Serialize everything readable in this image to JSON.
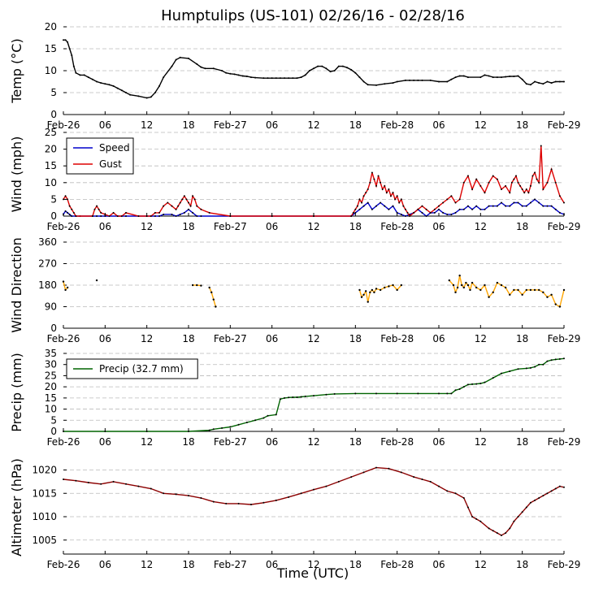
{
  "figure": {
    "title": "Humptulips (US-101) 02/26/16 - 02/28/16",
    "xlabel": "Time (UTC)"
  },
  "chart_data": [
    {
      "type": "line",
      "id": "temp",
      "ylabel": "Temp (°C)",
      "ylim": [
        0,
        20
      ],
      "yticks": [
        0,
        5,
        10,
        15,
        20
      ],
      "series": [
        {
          "name": "Temp",
          "color": "#000000",
          "x": [
            0,
            1,
            2,
            3,
            4,
            5,
            6,
            8,
            10,
            12,
            14,
            16,
            18,
            20,
            22,
            24,
            26,
            28,
            30,
            32,
            36,
            40,
            42,
            44,
            46,
            48,
            52,
            54,
            56,
            60,
            64,
            66,
            68,
            72,
            76,
            78,
            80,
            82,
            84,
            86,
            88,
            90,
            92,
            96,
            98,
            100,
            102,
            104,
            106,
            108,
            110,
            112,
            114,
            116,
            118,
            120,
            122,
            124,
            126,
            128,
            130,
            132,
            134,
            136,
            138,
            140,
            142,
            144,
            146,
            150,
            154,
            158,
            160,
            164,
            166,
            168,
            170,
            172,
            176,
            180,
            184,
            186,
            188,
            190,
            192,
            194,
            200,
            202,
            204,
            206,
            208,
            210,
            212,
            214,
            216,
            218,
            220,
            222,
            224,
            226,
            228,
            230,
            232,
            234,
            236,
            238,
            240
          ],
          "y": [
            17,
            17,
            16.5,
            15,
            13.5,
            11,
            9.5,
            9,
            9,
            8.5,
            8,
            7.5,
            7.2,
            7,
            6.8,
            6.5,
            6,
            5.5,
            5,
            4.5,
            4.2,
            3.8,
            4,
            5,
            6.5,
            8.5,
            11,
            12.5,
            13,
            12.8,
            11.5,
            10.8,
            10.5,
            10.5,
            10,
            9.5,
            9.3,
            9.2,
            9,
            8.8,
            8.7,
            8.5,
            8.4,
            8.3,
            8.3,
            8.3,
            8.3,
            8.3,
            8.3,
            8.3,
            8.3,
            8.3,
            8.5,
            9,
            10,
            10.5,
            11,
            11,
            10.5,
            9.8,
            10,
            11,
            11,
            10.7,
            10.2,
            9.5,
            8.5,
            7.5,
            6.8,
            6.7,
            7,
            7.2,
            7.5,
            7.8,
            7.8,
            7.8,
            7.8,
            7.8,
            7.8,
            7.5,
            7.5,
            8,
            8.5,
            8.8,
            8.8,
            8.5,
            8.5,
            9,
            8.8,
            8.5,
            8.5,
            8.5,
            8.6,
            8.7,
            8.7,
            8.8,
            8,
            7,
            6.8,
            7.5,
            7.2,
            7,
            7.5,
            7.2,
            7.5,
            7.5,
            7.5
          ]
        }
      ]
    },
    {
      "type": "line",
      "id": "wind",
      "ylabel": "Wind (mph)",
      "ylim": [
        0,
        25
      ],
      "yticks": [
        0,
        5,
        10,
        15,
        20,
        25
      ],
      "legend_position": "top-left",
      "series": [
        {
          "name": "Speed",
          "color": "#0000cc",
          "x": [
            0,
            1,
            2,
            3,
            4,
            8,
            14,
            16,
            18,
            20,
            30,
            40,
            44,
            46,
            48,
            52,
            54,
            56,
            58,
            60,
            62,
            64,
            66,
            80,
            100,
            120,
            138,
            140,
            142,
            144,
            146,
            148,
            150,
            152,
            154,
            156,
            158,
            160,
            162,
            164,
            166,
            168,
            170,
            172,
            174,
            176,
            178,
            180,
            182,
            184,
            186,
            188,
            190,
            192,
            194,
            196,
            198,
            200,
            202,
            204,
            206,
            208,
            210,
            212,
            214,
            216,
            218,
            220,
            222,
            224,
            226,
            228,
            230,
            232,
            234,
            236,
            238,
            240
          ],
          "y": [
            0.5,
            1.5,
            1,
            0.5,
            0,
            0,
            0,
            0,
            0,
            0,
            0,
            0,
            0,
            0,
            0.5,
            0.5,
            0,
            0.5,
            1,
            2,
            1,
            0,
            0,
            0,
            0,
            0,
            0,
            1,
            2,
            3,
            4,
            2,
            3,
            4,
            3,
            2,
            3,
            1,
            0.5,
            0,
            0.5,
            1,
            2,
            1,
            0,
            1,
            1,
            2,
            1,
            0.5,
            0.5,
            1,
            2,
            2,
            3,
            2,
            3,
            2,
            2,
            3,
            3,
            3,
            4,
            3,
            3,
            4,
            4,
            3,
            3,
            4,
            5,
            4,
            3,
            3,
            3,
            2,
            1,
            0.5
          ]
        },
        {
          "name": "Gust",
          "color": "#dd0000",
          "x": [
            0,
            1,
            2,
            3,
            4,
            5,
            6,
            14,
            15,
            16,
            17,
            18,
            20,
            22,
            24,
            26,
            28,
            30,
            36,
            40,
            42,
            44,
            46,
            48,
            50,
            52,
            54,
            55,
            56,
            57,
            58,
            59,
            60,
            61,
            62,
            63,
            64,
            66,
            70,
            80,
            100,
            120,
            138,
            139,
            140,
            141,
            142,
            143,
            144,
            145,
            146,
            147,
            148,
            149,
            150,
            151,
            152,
            153,
            154,
            155,
            156,
            157,
            158,
            159,
            160,
            161,
            162,
            163,
            164,
            165,
            166,
            168,
            170,
            172,
            174,
            176,
            178,
            180,
            182,
            184,
            186,
            188,
            190,
            192,
            194,
            196,
            198,
            200,
            202,
            204,
            206,
            208,
            210,
            212,
            214,
            215,
            216,
            217,
            218,
            219,
            220,
            221,
            222,
            223,
            224,
            225,
            226,
            227,
            228,
            229,
            230,
            232,
            234,
            236,
            238,
            240
          ],
          "y": [
            5,
            6,
            5,
            3,
            2,
            1,
            0,
            0,
            2,
            3,
            2,
            1,
            0.5,
            0,
            1,
            0,
            0,
            1,
            0,
            0,
            0,
            1,
            1,
            3,
            4,
            3,
            2,
            3,
            4,
            5,
            6,
            5,
            4,
            3,
            6,
            5,
            3,
            2,
            1,
            0,
            0,
            0,
            0,
            1,
            2,
            3,
            5,
            4,
            6,
            7,
            8,
            10,
            13,
            11,
            9,
            12,
            10,
            8,
            9,
            7,
            8,
            6,
            7,
            5,
            6,
            4,
            5,
            3,
            2,
            1,
            0,
            1,
            2,
            3,
            2,
            1,
            2,
            3,
            4,
            5,
            6,
            4,
            5,
            10,
            12,
            8,
            11,
            9,
            7,
            10,
            12,
            11,
            8,
            9,
            7,
            10,
            11,
            12,
            10,
            9,
            8,
            7,
            8,
            7,
            9,
            12,
            13,
            11,
            10,
            21,
            8,
            10,
            14,
            10,
            6,
            4
          ]
        }
      ]
    },
    {
      "type": "scatter",
      "id": "wind_direction",
      "ylabel": "Wind Direction",
      "ylim": [
        0,
        360
      ],
      "yticks": [
        0,
        90,
        180,
        270,
        360
      ],
      "series": [
        {
          "name": "Wind Direction",
          "color": "#ffa500",
          "x": [
            0,
            1,
            2,
            16,
            62,
            64,
            66,
            70,
            71,
            72,
            73,
            142,
            143,
            144,
            145,
            146,
            147,
            148,
            149,
            150,
            152,
            154,
            156,
            158,
            160,
            162,
            185,
            187,
            188,
            189,
            190,
            191,
            192,
            193,
            194,
            195,
            196,
            198,
            200,
            202,
            204,
            206,
            208,
            210,
            212,
            214,
            216,
            218,
            220,
            222,
            224,
            226,
            228,
            230,
            232,
            234,
            236,
            238,
            240
          ],
          "y": [
            195,
            160,
            170,
            200,
            180,
            180,
            178,
            170,
            150,
            120,
            90,
            160,
            130,
            140,
            155,
            110,
            150,
            160,
            150,
            165,
            160,
            170,
            175,
            180,
            160,
            180,
            200,
            180,
            150,
            170,
            220,
            180,
            170,
            190,
            180,
            160,
            190,
            170,
            160,
            180,
            130,
            150,
            190,
            180,
            170,
            140,
            160,
            160,
            140,
            160,
            160,
            160,
            160,
            150,
            130,
            140,
            100,
            90,
            160
          ]
        }
      ]
    },
    {
      "type": "line",
      "id": "precip",
      "ylabel": "Precip (mm)",
      "ylim": [
        0,
        35
      ],
      "yticks": [
        0,
        5,
        10,
        15,
        20,
        25,
        30,
        35
      ],
      "legend_position": "top-left",
      "series": [
        {
          "name": "Precip (32.7 mm)",
          "color": "#006400",
          "x": [
            0,
            20,
            40,
            60,
            70,
            72,
            76,
            80,
            84,
            88,
            92,
            96,
            98,
            102,
            104,
            106,
            108,
            110,
            112,
            114,
            116,
            120,
            126,
            130,
            140,
            150,
            160,
            170,
            180,
            184,
            186,
            188,
            190,
            192,
            194,
            196,
            198,
            200,
            202,
            206,
            210,
            214,
            218,
            222,
            224,
            226,
            228,
            230,
            232,
            234,
            236,
            238,
            240
          ],
          "y": [
            0,
            0,
            0,
            0,
            0.5,
            1,
            1.5,
            2,
            3,
            4,
            5,
            6,
            7,
            7.5,
            14.5,
            15,
            15.2,
            15.3,
            15.3,
            15.5,
            15.7,
            16,
            16.5,
            16.8,
            17,
            17,
            17,
            17,
            17,
            17,
            17,
            18.5,
            19,
            20,
            21,
            21.2,
            21.3,
            21.5,
            22,
            24,
            26,
            27,
            28,
            28.3,
            28.5,
            29,
            30,
            30,
            31.5,
            32,
            32.3,
            32.5,
            32.7
          ]
        }
      ]
    },
    {
      "type": "line",
      "id": "altimeter",
      "ylabel": "Altimeter (hPa)",
      "ylim": [
        1002,
        1022
      ],
      "yticks": [
        1005,
        1010,
        1015,
        1020
      ],
      "series": [
        {
          "name": "Altimeter",
          "color": "#8b0000",
          "x": [
            0,
            6,
            12,
            18,
            24,
            30,
            36,
            42,
            48,
            54,
            60,
            66,
            72,
            78,
            84,
            90,
            96,
            102,
            108,
            114,
            120,
            126,
            132,
            138,
            144,
            150,
            156,
            162,
            168,
            172,
            176,
            180,
            184,
            188,
            192,
            194,
            196,
            198,
            200,
            204,
            206,
            208,
            210,
            212,
            214,
            216,
            218,
            220,
            222,
            224,
            226,
            228,
            230,
            232,
            234,
            236,
            238,
            240
          ],
          "y": [
            1018,
            1017.7,
            1017.3,
            1017,
            1017.5,
            1017,
            1016.5,
            1016,
            1015,
            1014.8,
            1014.5,
            1014,
            1013.2,
            1012.8,
            1012.8,
            1012.6,
            1013,
            1013.5,
            1014.2,
            1015,
            1015.8,
            1016.5,
            1017.5,
            1018.5,
            1019.5,
            1020.5,
            1020.3,
            1019.5,
            1018.5,
            1018,
            1017.5,
            1016.5,
            1015.5,
            1015,
            1014,
            1012,
            1010,
            1009.5,
            1009,
            1007.5,
            1007,
            1006.5,
            1006,
            1006.5,
            1007.5,
            1009,
            1010,
            1011,
            1012,
            1013,
            1013.5,
            1014,
            1014.5,
            1015,
            1015.5,
            1016,
            1016.5,
            1016.3
          ]
        }
      ]
    }
  ],
  "x_ticks": [
    {
      "hour": 0,
      "label": "Feb-26"
    },
    {
      "hour": 20,
      "label": "06"
    },
    {
      "hour": 40,
      "label": "12"
    },
    {
      "hour": 60,
      "label": "18"
    },
    {
      "hour": 80,
      "label": "Feb-27"
    },
    {
      "hour": 100,
      "label": "06"
    },
    {
      "hour": 120,
      "label": "12"
    },
    {
      "hour": 140,
      "label": "18"
    },
    {
      "hour": 160,
      "label": "Feb-28"
    },
    {
      "hour": 180,
      "label": "06"
    },
    {
      "hour": 200,
      "label": "12"
    },
    {
      "hour": 220,
      "label": "18"
    },
    {
      "hour": 240,
      "label": "Feb-29"
    }
  ],
  "x_range": [
    0,
    240
  ]
}
